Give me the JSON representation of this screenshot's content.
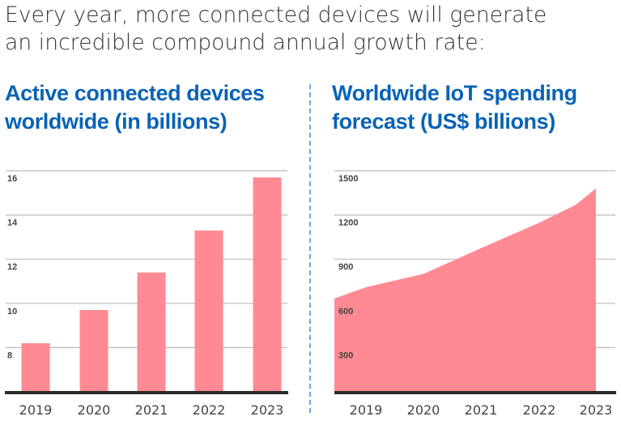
{
  "intro": {
    "line1": "Every year, more connected devices will generate",
    "line2": "an incredible compound annual growth rate:"
  },
  "colors": {
    "title": "#0a63b5",
    "mark": "#ff8a93",
    "axis": "#2a2a2a",
    "grid": "#bbbbbb",
    "divider": "#6aa7de"
  },
  "chart_data": [
    {
      "type": "bar",
      "title_line1": "Active connected devices",
      "title_line2": "worldwide (in billions)",
      "xlabel": "",
      "ylabel": "",
      "categories": [
        "2019",
        "2020",
        "2021",
        "2022",
        "2023"
      ],
      "values": [
        8.2,
        9.7,
        11.4,
        13.3,
        15.7
      ],
      "yticks": [
        8,
        10,
        12,
        14,
        16
      ],
      "ytick_labels": [
        "8",
        "10",
        "12",
        "14",
        "16"
      ],
      "ylim": [
        6,
        16
      ],
      "grid": true,
      "legend": "none"
    },
    {
      "type": "area",
      "title_line1": "Worldwide IoT spending",
      "title_line2": "forecast (US$ billions)",
      "xlabel": "",
      "ylabel": "",
      "categories": [
        "2019",
        "2020",
        "2021",
        "2022",
        "2023"
      ],
      "x": [
        2018.5,
        2019,
        2020,
        2021,
        2022,
        2022.65,
        2023
      ],
      "values": [
        633,
        710,
        800,
        975,
        1145,
        1270,
        1380
      ],
      "yticks": [
        300,
        600,
        900,
        1200,
        1500
      ],
      "ytick_labels": [
        "300",
        "600",
        "900",
        "1200",
        "1500"
      ],
      "ylim": [
        0,
        1500
      ],
      "grid": true,
      "legend": "none"
    }
  ]
}
